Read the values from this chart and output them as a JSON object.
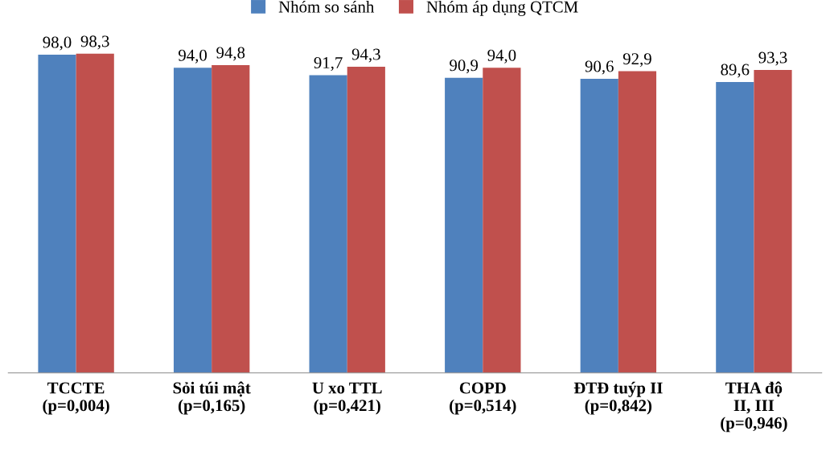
{
  "chart_data": {
    "type": "bar",
    "categories": [
      "TCCTE\n(p=0,004)",
      "Sỏi túi mật\n(p=0,165)",
      "U xo TTL\n(p=0,421)",
      "COPD\n(p=0,514)",
      "ĐTĐ tuýp II\n(p=0,842)",
      "THA độ\nII, III\n(p=0,946)"
    ],
    "series": [
      {
        "name": "Nhóm so sánh",
        "color": "#4f81bd",
        "values": [
          98.0,
          94.0,
          91.7,
          90.9,
          90.6,
          89.6
        ],
        "value_labels": [
          "98,0",
          "94,0",
          "91,7",
          "90,9",
          "90,6",
          "89,6"
        ]
      },
      {
        "name": "Nhóm áp dụng QTCM",
        "color": "#c0504d",
        "values": [
          98.3,
          94.8,
          94.3,
          94.0,
          92.9,
          93.3
        ],
        "value_labels": [
          "98,3",
          "94,8",
          "94,3",
          "94,0",
          "92,9",
          "93,3"
        ]
      }
    ],
    "tick_labels": "x",
    "grid": false,
    "legend": "top"
  }
}
